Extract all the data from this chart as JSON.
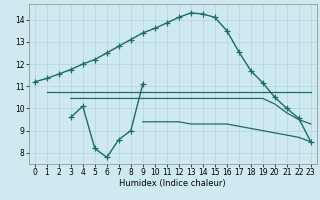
{
  "xlabel": "Humidex (Indice chaleur)",
  "bg_color": "#ceeaf0",
  "grid_color": "#b8d8de",
  "line_color": "#1a6b6b",
  "xlim": [
    -0.5,
    23.5
  ],
  "ylim": [
    7.5,
    14.7
  ],
  "xticks": [
    0,
    1,
    2,
    3,
    4,
    5,
    6,
    7,
    8,
    9,
    10,
    11,
    12,
    13,
    14,
    15,
    16,
    17,
    18,
    19,
    20,
    21,
    22,
    23
  ],
  "yticks": [
    8,
    9,
    10,
    11,
    12,
    13,
    14
  ],
  "series": [
    {
      "x": [
        0,
        1,
        2,
        3,
        4,
        5,
        6,
        7,
        8,
        9,
        10,
        11,
        12,
        13,
        14,
        15,
        16,
        17,
        18,
        19,
        20,
        21,
        22,
        23
      ],
      "y": [
        11.2,
        11.35,
        11.55,
        11.75,
        12.0,
        12.2,
        12.5,
        12.8,
        13.1,
        13.4,
        13.6,
        13.85,
        14.1,
        14.3,
        14.25,
        14.1,
        13.5,
        12.55,
        11.7,
        11.15,
        10.5,
        10.0,
        9.55,
        8.5
      ],
      "marker": "+",
      "markersize": 4,
      "linewidth": 1.0
    },
    {
      "x": [
        3,
        4,
        5,
        6,
        7,
        8,
        9
      ],
      "y": [
        9.6,
        10.1,
        8.2,
        7.8,
        8.6,
        9.0,
        11.1
      ],
      "marker": "+",
      "markersize": 4,
      "linewidth": 1.0
    },
    {
      "x": [
        1,
        2,
        3,
        4,
        5,
        6,
        7,
        8,
        9,
        10,
        11,
        12,
        13,
        14,
        15,
        16,
        17,
        18,
        19,
        20,
        21,
        22,
        23
      ],
      "y": [
        10.75,
        10.75,
        10.75,
        10.75,
        10.75,
        10.75,
        10.75,
        10.75,
        10.75,
        10.75,
        10.75,
        10.75,
        10.75,
        10.75,
        10.75,
        10.75,
        10.75,
        10.75,
        10.75,
        10.75,
        10.75,
        10.75,
        10.75
      ],
      "marker": null,
      "markersize": 0,
      "linewidth": 0.9
    },
    {
      "x": [
        3,
        4,
        5,
        6,
        7,
        8,
        9,
        10,
        11,
        12,
        13,
        14,
        15,
        16,
        17,
        18,
        19,
        20,
        21,
        22,
        23
      ],
      "y": [
        10.45,
        10.45,
        10.45,
        10.45,
        10.45,
        10.45,
        10.45,
        10.45,
        10.45,
        10.45,
        10.45,
        10.45,
        10.45,
        10.45,
        10.45,
        10.45,
        10.45,
        10.2,
        9.8,
        9.5,
        9.3
      ],
      "marker": null,
      "markersize": 0,
      "linewidth": 0.9
    },
    {
      "x": [
        9,
        10,
        11,
        12,
        13,
        14,
        15,
        16,
        17,
        18,
        19,
        20,
        21,
        22,
        23
      ],
      "y": [
        9.4,
        9.4,
        9.4,
        9.4,
        9.3,
        9.3,
        9.3,
        9.3,
        9.2,
        9.1,
        9.0,
        8.9,
        8.8,
        8.7,
        8.5
      ],
      "marker": null,
      "markersize": 0,
      "linewidth": 0.9
    }
  ]
}
